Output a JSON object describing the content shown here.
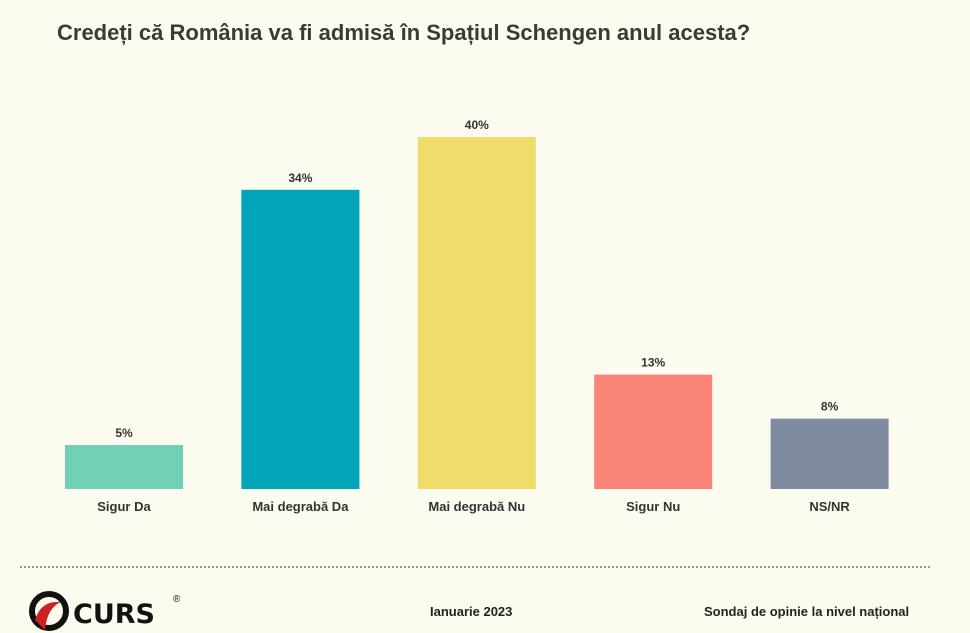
{
  "chart_data": {
    "type": "bar",
    "title": "Credeți că România va fi admisă în Spațiul Schengen anul acesta?",
    "categories": [
      "Sigur Da",
      "Mai degrabă Da",
      "Mai degrabă Nu",
      "Sigur Nu",
      "NS/NR"
    ],
    "values": [
      5,
      34,
      40,
      13,
      8
    ],
    "data_labels": [
      "5%",
      "34%",
      "40%",
      "13%",
      "8%"
    ],
    "colors": [
      "#72d0b6",
      "#00a6b8",
      "#f0dc6a",
      "#fc857a",
      "#7f8b9f"
    ],
    "unit": "%",
    "grid": false,
    "legend": "none"
  },
  "footer": {
    "logo_text": "CURS",
    "date": "Ianuarie 2023",
    "note": "Sondaj de opinie la nivel național"
  }
}
